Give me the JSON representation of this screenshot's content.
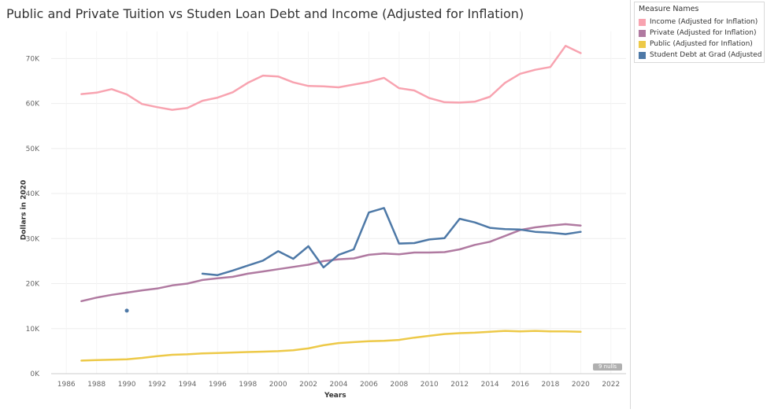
{
  "chart_data": {
    "type": "line",
    "title": "Public and Private Tuition vs Studen Loan Debt and Income (Adjusted for Inflation)",
    "xlabel": "Years",
    "ylabel": "Dollars in 2020",
    "xlim": [
      1985,
      2023
    ],
    "ylim": [
      0,
      76000
    ],
    "x_ticks": [
      1986,
      1988,
      1990,
      1992,
      1994,
      1996,
      1998,
      2000,
      2002,
      2004,
      2006,
      2008,
      2010,
      2012,
      2014,
      2016,
      2018,
      2020,
      2022
    ],
    "y_ticks": [
      0,
      10000,
      20000,
      30000,
      40000,
      50000,
      60000,
      70000
    ],
    "y_tick_labels": [
      "0K",
      "10K",
      "20K",
      "30K",
      "40K",
      "50K",
      "60K",
      "70K"
    ],
    "grid": true,
    "legend_title": "Measure Names",
    "legend_position": "top-right, outside plot",
    "nulls_indicator": "9 nulls",
    "series": [
      {
        "name": "Income (Adjusted for Inflation)",
        "color": "#f8a3b0",
        "points": [
          [
            1987,
            62100
          ],
          [
            1988,
            62400
          ],
          [
            1989,
            63200
          ],
          [
            1990,
            62000
          ],
          [
            1991,
            59900
          ],
          [
            1992,
            59200
          ],
          [
            1993,
            58600
          ],
          [
            1994,
            59000
          ],
          [
            1995,
            60600
          ],
          [
            1996,
            61300
          ],
          [
            1997,
            62500
          ],
          [
            1998,
            64600
          ],
          [
            1999,
            66200
          ],
          [
            2000,
            66000
          ],
          [
            2001,
            64700
          ],
          [
            2002,
            63900
          ],
          [
            2003,
            63800
          ],
          [
            2004,
            63600
          ],
          [
            2005,
            64200
          ],
          [
            2006,
            64800
          ],
          [
            2007,
            65700
          ],
          [
            2008,
            63400
          ],
          [
            2009,
            62900
          ],
          [
            2010,
            61200
          ],
          [
            2011,
            60300
          ],
          [
            2012,
            60200
          ],
          [
            2013,
            60400
          ],
          [
            2014,
            61500
          ],
          [
            2015,
            64600
          ],
          [
            2016,
            66600
          ],
          [
            2017,
            67500
          ],
          [
            2018,
            68100
          ],
          [
            2019,
            72800
          ],
          [
            2020,
            71200
          ]
        ]
      },
      {
        "name": "Private (Adjusted for Inflation)",
        "color": "#b07aa1",
        "points": [
          [
            1987,
            16100
          ],
          [
            1988,
            16900
          ],
          [
            1989,
            17500
          ],
          [
            1990,
            18000
          ],
          [
            1991,
            18500
          ],
          [
            1992,
            18900
          ],
          [
            1993,
            19600
          ],
          [
            1994,
            20000
          ],
          [
            1995,
            20800
          ],
          [
            1996,
            21200
          ],
          [
            1997,
            21500
          ],
          [
            1998,
            22200
          ],
          [
            1999,
            22700
          ],
          [
            2000,
            23200
          ],
          [
            2001,
            23700
          ],
          [
            2002,
            24200
          ],
          [
            2003,
            25000
          ],
          [
            2004,
            25400
          ],
          [
            2005,
            25600
          ],
          [
            2006,
            26400
          ],
          [
            2007,
            26700
          ],
          [
            2008,
            26500
          ],
          [
            2009,
            26900
          ],
          [
            2010,
            26900
          ],
          [
            2011,
            27000
          ],
          [
            2012,
            27600
          ],
          [
            2013,
            28600
          ],
          [
            2014,
            29300
          ],
          [
            2015,
            30600
          ],
          [
            2016,
            31900
          ],
          [
            2017,
            32500
          ],
          [
            2018,
            32900
          ],
          [
            2019,
            33200
          ],
          [
            2020,
            32900
          ]
        ]
      },
      {
        "name": "Public (Adjusted for Inflation)",
        "color": "#edc948",
        "points": [
          [
            1987,
            2900
          ],
          [
            1988,
            3000
          ],
          [
            1989,
            3100
          ],
          [
            1990,
            3200
          ],
          [
            1991,
            3500
          ],
          [
            1992,
            3900
          ],
          [
            1993,
            4200
          ],
          [
            1994,
            4300
          ],
          [
            1995,
            4500
          ],
          [
            1996,
            4600
          ],
          [
            1997,
            4700
          ],
          [
            1998,
            4800
          ],
          [
            1999,
            4900
          ],
          [
            2000,
            5000
          ],
          [
            2001,
            5200
          ],
          [
            2002,
            5600
          ],
          [
            2003,
            6300
          ],
          [
            2004,
            6800
          ],
          [
            2005,
            7000
          ],
          [
            2006,
            7200
          ],
          [
            2007,
            7300
          ],
          [
            2008,
            7500
          ],
          [
            2009,
            8000
          ],
          [
            2010,
            8400
          ],
          [
            2011,
            8800
          ],
          [
            2012,
            9000
          ],
          [
            2013,
            9100
          ],
          [
            2014,
            9300
          ],
          [
            2015,
            9500
          ],
          [
            2016,
            9400
          ],
          [
            2017,
            9500
          ],
          [
            2018,
            9400
          ],
          [
            2019,
            9400
          ],
          [
            2020,
            9300
          ]
        ]
      },
      {
        "name": "Student Debt at Grad (Adjusted For..",
        "color": "#4e79a7",
        "isolated_points": [
          [
            1990,
            14000
          ]
        ],
        "points": [
          [
            1995,
            22200
          ],
          [
            1996,
            21900
          ],
          [
            1997,
            22900
          ],
          [
            1998,
            24000
          ],
          [
            1999,
            25100
          ],
          [
            2000,
            27200
          ],
          [
            2001,
            25500
          ],
          [
            2002,
            28300
          ],
          [
            2003,
            23600
          ],
          [
            2004,
            26400
          ],
          [
            2005,
            27600
          ],
          [
            2006,
            35800
          ],
          [
            2007,
            36800
          ],
          [
            2008,
            28900
          ],
          [
            2009,
            29000
          ],
          [
            2010,
            29800
          ],
          [
            2011,
            30100
          ],
          [
            2012,
            34400
          ],
          [
            2013,
            33600
          ],
          [
            2014,
            32400
          ],
          [
            2015,
            32100
          ],
          [
            2016,
            32000
          ],
          [
            2017,
            31500
          ],
          [
            2018,
            31300
          ],
          [
            2019,
            31000
          ],
          [
            2020,
            31500
          ]
        ]
      }
    ]
  }
}
